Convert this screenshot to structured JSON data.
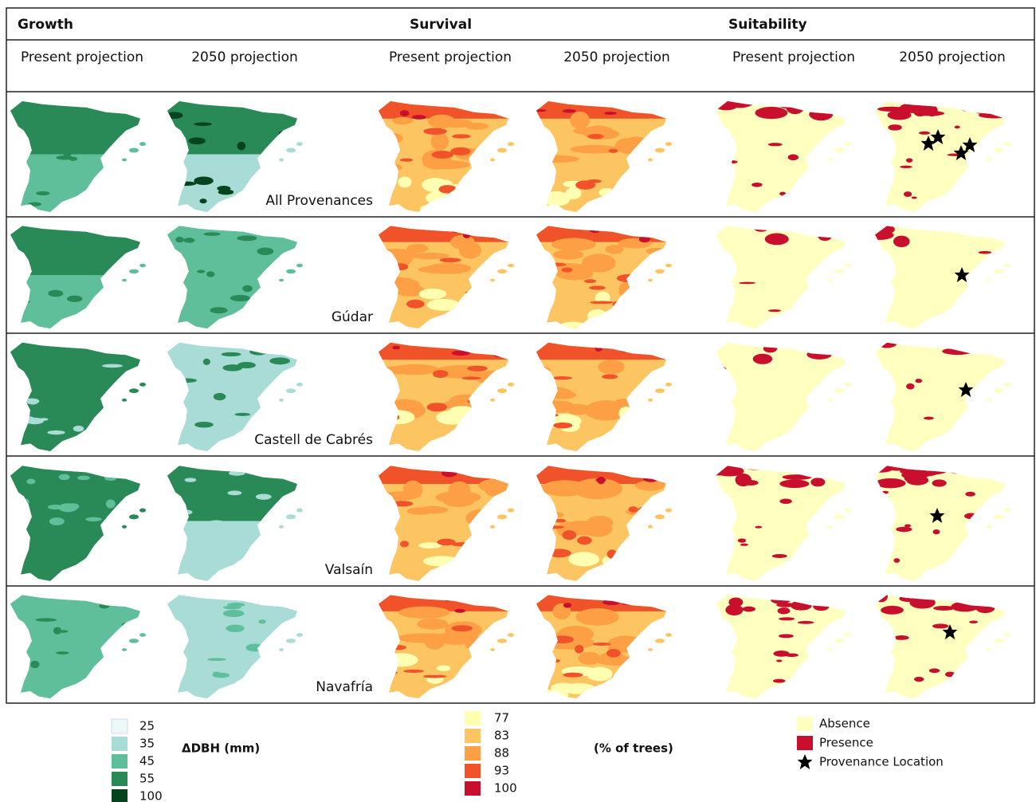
{
  "header": {
    "groups": [
      "Growth",
      "Survival",
      "Suitability"
    ],
    "columns": [
      "Present projection",
      "2050 projection",
      "Present projection",
      "2050 projection",
      "Present projection",
      "2050 projection"
    ]
  },
  "rows": [
    {
      "label": "All Provenances"
    },
    {
      "label": "Gúdar"
    },
    {
      "label": "Castell  de Cabrés"
    },
    {
      "label": "Valsaín"
    },
    {
      "label": "Navafría"
    }
  ],
  "legends": {
    "growth": {
      "title": "ΔDBH (mm)",
      "items": [
        25,
        35,
        45,
        55,
        100
      ],
      "colors": [
        "#eef8f8",
        "#a9dcd6",
        "#5fbf9a",
        "#2a8a57",
        "#05441f"
      ]
    },
    "survival": {
      "title": "(% of trees)",
      "items": [
        77,
        83,
        88,
        93,
        100
      ],
      "colors": [
        "#ffffb2",
        "#fdc561",
        "#fd9f44",
        "#f0522a",
        "#c8102e"
      ]
    },
    "suitability": {
      "items": [
        "Absence",
        "Presence",
        "Provenance Location"
      ],
      "colors": [
        "#ffffc0",
        "#c8102e",
        "#000000"
      ]
    }
  }
}
